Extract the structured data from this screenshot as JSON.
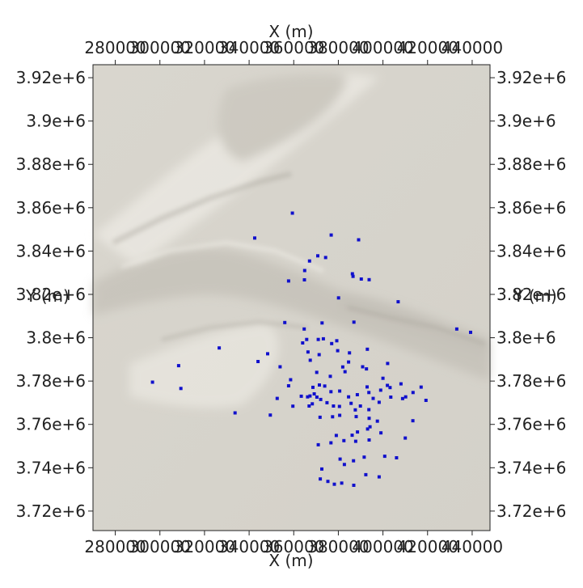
{
  "chart_data": {
    "type": "scatter",
    "xlabel": "X (m)",
    "ylabel": "Y (m)",
    "xlim": [
      270000,
      448000
    ],
    "ylim": [
      3711000,
      3926000
    ],
    "x_ticks": [
      {
        "value": 280000,
        "label": "280000"
      },
      {
        "value": 300000,
        "label": "300000"
      },
      {
        "value": 320000,
        "label": "320000"
      },
      {
        "value": 340000,
        "label": "340000"
      },
      {
        "value": 360000,
        "label": "360000"
      },
      {
        "value": 380000,
        "label": "380000"
      },
      {
        "value": 400000,
        "label": "400000"
      },
      {
        "value": 420000,
        "label": "420000"
      },
      {
        "value": 440000,
        "label": "440000"
      }
    ],
    "y_ticks": [
      {
        "value": 3720000,
        "label": "3.72e+6"
      },
      {
        "value": 3740000,
        "label": "3.74e+6"
      },
      {
        "value": 3760000,
        "label": "3.76e+6"
      },
      {
        "value": 3780000,
        "label": "3.78e+6"
      },
      {
        "value": 3800000,
        "label": "3.8e+6"
      },
      {
        "value": 3820000,
        "label": "3.82e+6"
      },
      {
        "value": 3840000,
        "label": "3.84e+6"
      },
      {
        "value": 3860000,
        "label": "3.86e+6"
      },
      {
        "value": 3880000,
        "label": "3.88e+6"
      },
      {
        "value": 3900000,
        "label": "3.9e+6"
      },
      {
        "value": 3920000,
        "label": "3.92e+6"
      }
    ],
    "colors": {
      "background": "#d8d5cd",
      "points": "#1010cc",
      "axis": "#222222"
    },
    "grid": false,
    "points": [
      [
        359400,
        3857500
      ],
      [
        342500,
        3846000
      ],
      [
        376800,
        3847400
      ],
      [
        389100,
        3845200
      ],
      [
        370800,
        3837800
      ],
      [
        374300,
        3837000
      ],
      [
        367100,
        3835400
      ],
      [
        364900,
        3831000
      ],
      [
        364800,
        3826700
      ],
      [
        357700,
        3826200
      ],
      [
        386300,
        3829500
      ],
      [
        386600,
        3828300
      ],
      [
        390300,
        3827100
      ],
      [
        393800,
        3826800
      ],
      [
        380100,
        3818400
      ],
      [
        406800,
        3816600
      ],
      [
        356000,
        3807000
      ],
      [
        372700,
        3806800
      ],
      [
        364700,
        3804000
      ],
      [
        387000,
        3807200
      ],
      [
        433100,
        3804000
      ],
      [
        439300,
        3802500
      ],
      [
        371000,
        3799200
      ],
      [
        373300,
        3799500
      ],
      [
        365800,
        3799200
      ],
      [
        364000,
        3797600
      ],
      [
        379300,
        3798600
      ],
      [
        377000,
        3797300
      ],
      [
        326600,
        3795300
      ],
      [
        348300,
        3792600
      ],
      [
        366400,
        3793400
      ],
      [
        371400,
        3792200
      ],
      [
        385000,
        3793000
      ],
      [
        393000,
        3794700
      ],
      [
        379700,
        3794000
      ],
      [
        367400,
        3789600
      ],
      [
        384600,
        3788800
      ],
      [
        344000,
        3789000
      ],
      [
        353900,
        3786600
      ],
      [
        382000,
        3786500
      ],
      [
        392600,
        3785600
      ],
      [
        402100,
        3788100
      ],
      [
        383000,
        3784300
      ],
      [
        370300,
        3784000
      ],
      [
        390900,
        3786600
      ],
      [
        376400,
        3782200
      ],
      [
        400000,
        3781300
      ],
      [
        358600,
        3780600
      ],
      [
        402000,
        3778000
      ],
      [
        403200,
        3777000
      ],
      [
        399000,
        3775800
      ],
      [
        380600,
        3775400
      ],
      [
        392900,
        3777300
      ],
      [
        408100,
        3778700
      ],
      [
        417100,
        3777200
      ],
      [
        371500,
        3778200
      ],
      [
        373900,
        3777700
      ],
      [
        368600,
        3777100
      ],
      [
        357700,
        3777800
      ],
      [
        376700,
        3775100
      ],
      [
        363400,
        3773000
      ],
      [
        367300,
        3773100
      ],
      [
        369200,
        3774100
      ],
      [
        393700,
        3774700
      ],
      [
        388500,
        3773700
      ],
      [
        384600,
        3772700
      ],
      [
        372100,
        3771500
      ],
      [
        370400,
        3772600
      ],
      [
        366200,
        3772700
      ],
      [
        352600,
        3772000
      ],
      [
        309400,
        3776600
      ],
      [
        296700,
        3779500
      ],
      [
        308400,
        3787100
      ],
      [
        374900,
        3770000
      ],
      [
        385700,
        3769700
      ],
      [
        380500,
        3768300
      ],
      [
        389900,
        3768500
      ],
      [
        395600,
        3772000
      ],
      [
        398300,
        3770200
      ],
      [
        403500,
        3772600
      ],
      [
        410200,
        3772700
      ],
      [
        413500,
        3774700
      ],
      [
        419300,
        3771100
      ],
      [
        408800,
        3771900
      ],
      [
        387600,
        3766700
      ],
      [
        393700,
        3766800
      ],
      [
        359600,
        3768400
      ],
      [
        366900,
        3768500
      ],
      [
        368300,
        3769500
      ],
      [
        377800,
        3768500
      ],
      [
        371800,
        3763300
      ],
      [
        377400,
        3763500
      ],
      [
        380600,
        3764200
      ],
      [
        388000,
        3763600
      ],
      [
        393800,
        3762800
      ],
      [
        397500,
        3761500
      ],
      [
        413400,
        3761700
      ],
      [
        349500,
        3764300
      ],
      [
        333700,
        3765300
      ],
      [
        394200,
        3758900
      ],
      [
        393100,
        3757900
      ],
      [
        388600,
        3756500
      ],
      [
        386200,
        3755000
      ],
      [
        379100,
        3754900
      ],
      [
        382500,
        3752500
      ],
      [
        387800,
        3752200
      ],
      [
        393800,
        3752800
      ],
      [
        399100,
        3756100
      ],
      [
        410000,
        3753700
      ],
      [
        376700,
        3751500
      ],
      [
        371000,
        3750600
      ],
      [
        391600,
        3744900
      ],
      [
        400800,
        3745300
      ],
      [
        406100,
        3744600
      ],
      [
        392300,
        3736800
      ],
      [
        382700,
        3741500
      ],
      [
        386800,
        3743200
      ],
      [
        380800,
        3744000
      ],
      [
        372600,
        3739400
      ],
      [
        398300,
        3735800
      ],
      [
        371900,
        3734800
      ],
      [
        375300,
        3733700
      ],
      [
        378200,
        3732400
      ],
      [
        381500,
        3732900
      ],
      [
        386900,
        3731900
      ]
    ]
  }
}
